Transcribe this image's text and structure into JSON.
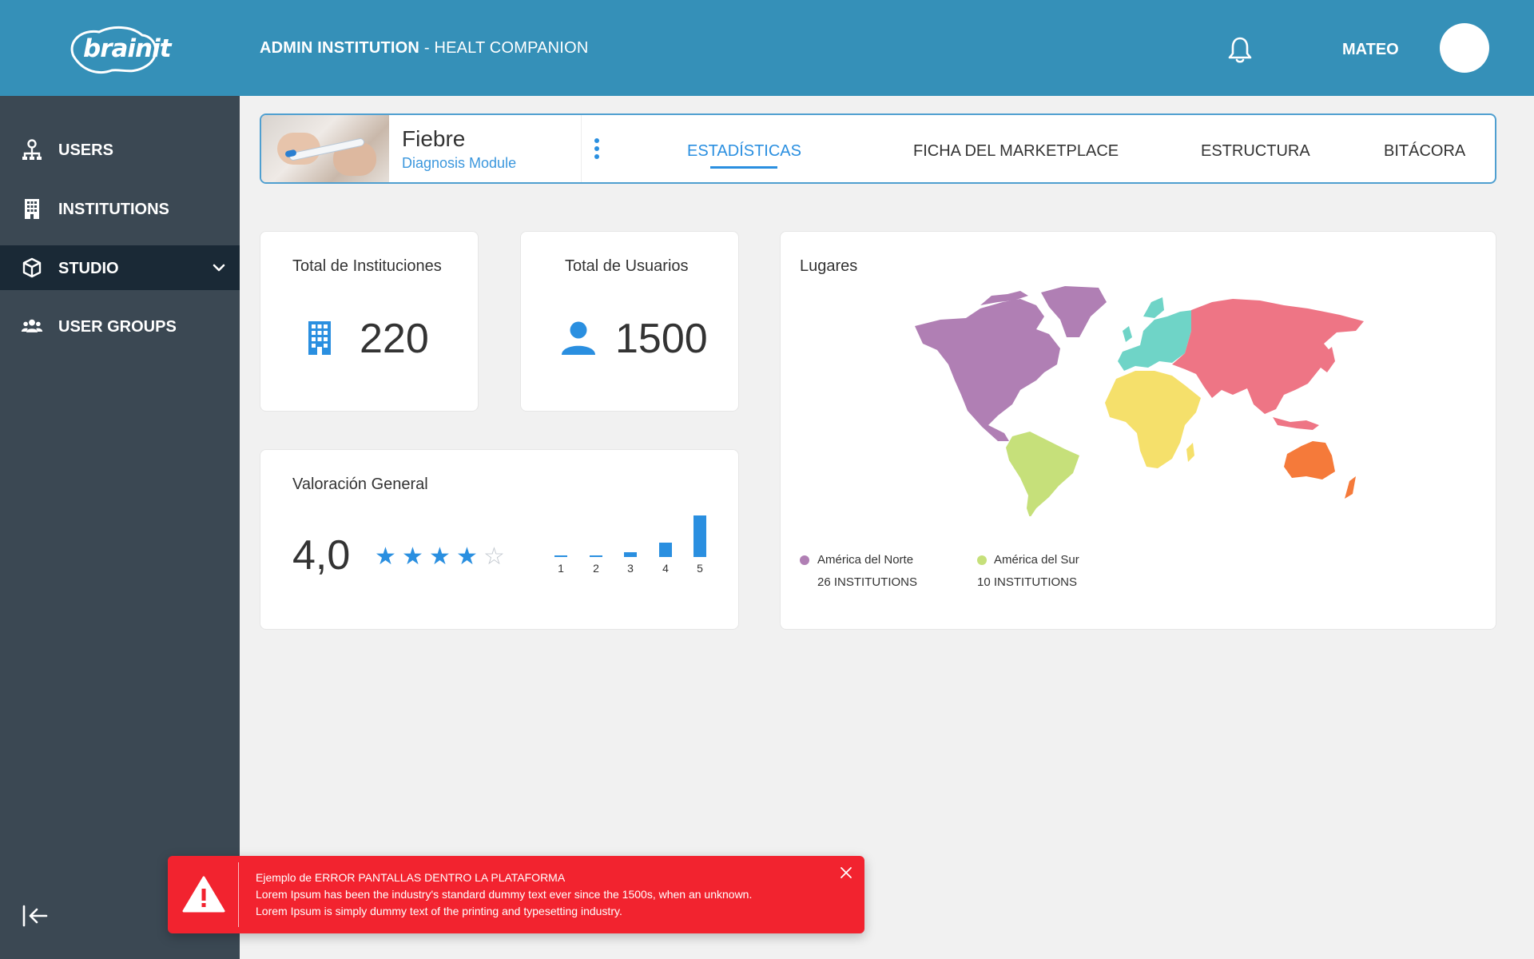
{
  "header": {
    "logo_text": "brainit",
    "title_strong": "ADMIN INSTITUTION",
    "title_sep": " - ",
    "title_rest": "HEALT COMPANION",
    "user_name": "MATEO",
    "icons": {
      "bell": "bell-icon"
    }
  },
  "sidebar": {
    "items": [
      {
        "label": "USERS",
        "icon": "user-tree-icon"
      },
      {
        "label": "INSTITUTIONS",
        "icon": "building-icon"
      },
      {
        "label": "STUDIO",
        "icon": "cube-icon",
        "active": true
      },
      {
        "label": "USER GROUPS",
        "icon": "users-icon"
      }
    ],
    "collapse_icon": "collapse-left-icon"
  },
  "module": {
    "name": "Fiebre",
    "subtitle": "Diagnosis Module",
    "tabs": [
      {
        "label": "ESTADÍSTICAS",
        "active": true
      },
      {
        "label": "FICHA DEL MARKETPLACE"
      },
      {
        "label": "ESTRUCTURA"
      },
      {
        "label": "BITÁCORA"
      }
    ]
  },
  "stats": {
    "institutions": {
      "title": "Total de Instituciones",
      "value": "220"
    },
    "users": {
      "title": "Total de Usuarios",
      "value": "1500"
    }
  },
  "rating": {
    "title": "Valoración General",
    "value": "4,0",
    "stars_filled": 4,
    "stars_total": 5,
    "distribution": [
      {
        "label": "1",
        "level": 0.02
      },
      {
        "label": "2",
        "level": 0.02
      },
      {
        "label": "3",
        "level": 0.12
      },
      {
        "label": "4",
        "level": 0.35
      },
      {
        "label": "5",
        "level": 1.0
      }
    ]
  },
  "map": {
    "title": "Lugares",
    "legend": [
      {
        "name": "América del Norte",
        "count": "26 INSTITUTIONS",
        "color": "#b07fb4"
      },
      {
        "name": "América del Sur",
        "count": "10 INSTITUTIONS",
        "color": "#c6e07a"
      }
    ],
    "region_colors": {
      "north_america": "#b07fb4",
      "south_america": "#c6e07a",
      "europe": "#6fd4c7",
      "africa": "#f5e06b",
      "asia": "#ee7585",
      "oceania": "#f57a3a"
    }
  },
  "toast": {
    "title": "Ejemplo de ERROR PANTALLAS DENTRO LA PLATAFORMA",
    "line1": "Lorem Ipsum has been the industry's standard dummy text ever since the 1500s, when an unknown.",
    "line2": "Lorem Ipsum is simply dummy text of the printing and typesetting industry.",
    "color": "#f2232f"
  }
}
